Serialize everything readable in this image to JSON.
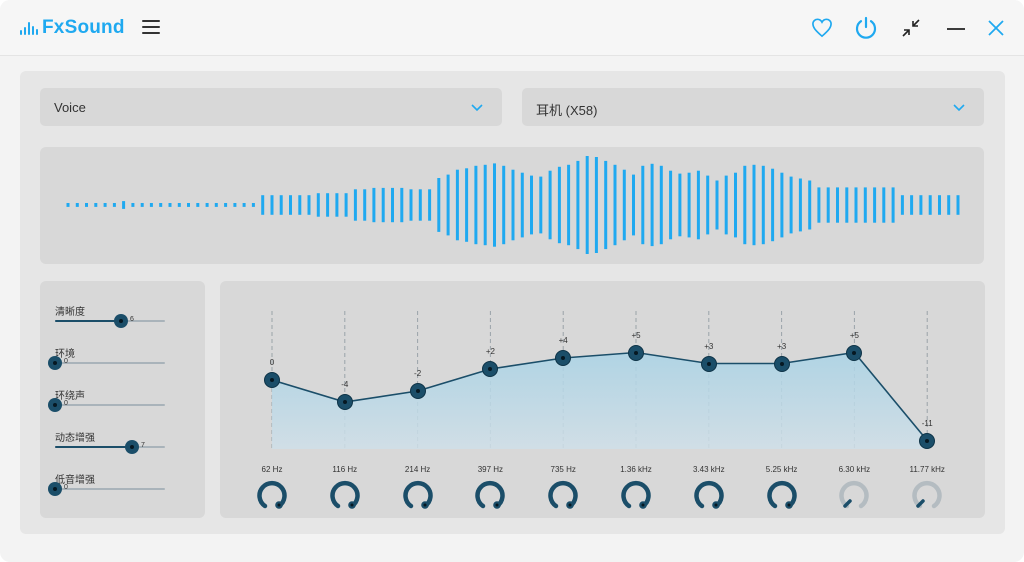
{
  "app": {
    "name": "FxSound",
    "brand_color": "#1fa9f0",
    "dark_color": "#1b4e69"
  },
  "titlebar": {
    "icons": [
      "menu-icon",
      "heart-icon",
      "power-icon",
      "minimize-view-icon",
      "minimize-icon",
      "close-icon"
    ]
  },
  "preset": {
    "selected": "Voice"
  },
  "device": {
    "selected": "耳机 (X58)"
  },
  "visualizer": {
    "levels": [
      0.04,
      0.04,
      0.04,
      0.04,
      0.04,
      0.04,
      0.08,
      0.04,
      0.04,
      0.04,
      0.04,
      0.04,
      0.04,
      0.04,
      0.04,
      0.04,
      0.04,
      0.04,
      0.04,
      0.04,
      0.04,
      0.2,
      0.2,
      0.2,
      0.2,
      0.2,
      0.2,
      0.24,
      0.24,
      0.24,
      0.24,
      0.32,
      0.32,
      0.35,
      0.35,
      0.35,
      0.35,
      0.32,
      0.32,
      0.32,
      0.55,
      0.62,
      0.72,
      0.75,
      0.8,
      0.82,
      0.85,
      0.8,
      0.72,
      0.66,
      0.6,
      0.58,
      0.7,
      0.78,
      0.82,
      0.9,
      1.0,
      0.98,
      0.9,
      0.82,
      0.72,
      0.62,
      0.8,
      0.84,
      0.8,
      0.7,
      0.64,
      0.66,
      0.7,
      0.6,
      0.5,
      0.6,
      0.66,
      0.8,
      0.82,
      0.8,
      0.74,
      0.66,
      0.58,
      0.54,
      0.5,
      0.36,
      0.36,
      0.36,
      0.36,
      0.36,
      0.36,
      0.36,
      0.36,
      0.36,
      0.2,
      0.2,
      0.2,
      0.2,
      0.2,
      0.2,
      0.2
    ]
  },
  "effects": [
    {
      "label": "清晰度",
      "value": "6",
      "level": 0.6
    },
    {
      "label": "环境",
      "value": "0",
      "level": 0
    },
    {
      "label": "环绕声",
      "value": "0",
      "level": 0
    },
    {
      "label": "动态增强",
      "value": "7",
      "level": 0.7
    },
    {
      "label": "低音增强",
      "value": "0",
      "level": 0
    }
  ],
  "equalizer": {
    "bands": [
      {
        "freq": "62 Hz",
        "gain_label": "0",
        "gain": 0,
        "knob_active": true
      },
      {
        "freq": "116 Hz",
        "gain_label": "-4",
        "gain": -4,
        "knob_active": true
      },
      {
        "freq": "214 Hz",
        "gain_label": "-2",
        "gain": -2,
        "knob_active": true
      },
      {
        "freq": "397 Hz",
        "gain_label": "+2",
        "gain": 2,
        "knob_active": true
      },
      {
        "freq": "735 Hz",
        "gain_label": "+4",
        "gain": 4,
        "knob_active": true
      },
      {
        "freq": "1.36 kHz",
        "gain_label": "+5",
        "gain": 5,
        "knob_active": true
      },
      {
        "freq": "3.43 kHz",
        "gain_label": "+3",
        "gain": 3,
        "knob_active": true
      },
      {
        "freq": "5.25 kHz",
        "gain_label": "+3",
        "gain": 3,
        "knob_active": true
      },
      {
        "freq": "6.30 kHz",
        "gain_label": "+5",
        "gain": 5,
        "knob_active": false
      },
      {
        "freq": "11.77 kHz",
        "gain_label": "-11",
        "gain": -11,
        "knob_active": false
      }
    ]
  }
}
